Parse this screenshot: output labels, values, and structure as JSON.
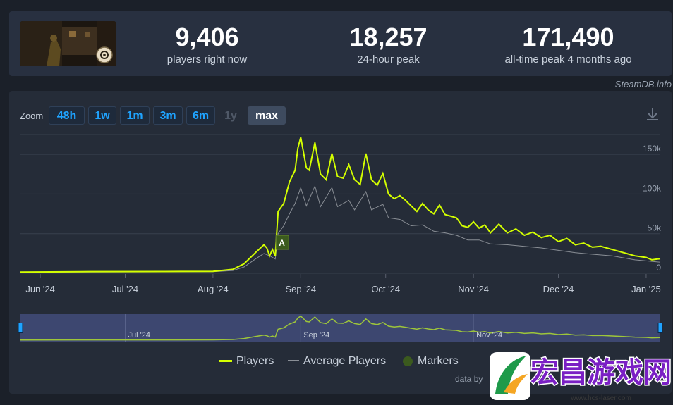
{
  "stats": {
    "current": {
      "value": "9,406",
      "label": "players right now"
    },
    "peak24": {
      "value": "18,257",
      "label": "24-hour peak"
    },
    "alltime": {
      "value": "171,490",
      "label": "all-time peak 4 months ago"
    }
  },
  "credit": "SteamDB.info",
  "zoom": {
    "label": "Zoom",
    "buttons": [
      "48h",
      "1w",
      "1m",
      "3m",
      "6m",
      "1y",
      "max"
    ],
    "active": "max",
    "disabled": "1y"
  },
  "colors": {
    "players": "#d4ff00",
    "average": "#8a8f96",
    "marker_fill": "#3b5a1e",
    "accent": "#1fa3ff"
  },
  "legend": {
    "players": "Players",
    "average": "Average Players",
    "markers": "Markers"
  },
  "data_source": "data by",
  "marker": {
    "label": "A",
    "date": "2024-08-24"
  },
  "watermark": {
    "text": "宏昌游戏网",
    "url": "www.hcs-laser.com"
  },
  "chart_data": {
    "type": "line",
    "title": "",
    "x_range": [
      "2024-05-25",
      "2025-01-06"
    ],
    "x_tick_labels": [
      "Jun '24",
      "Jul '24",
      "Aug '24",
      "Sep '24",
      "Oct '24",
      "Nov '24",
      "Dec '24",
      "Jan '25"
    ],
    "x_tick_dates": [
      "2024-06-01",
      "2024-07-01",
      "2024-08-01",
      "2024-09-01",
      "2024-10-01",
      "2024-11-01",
      "2024-12-01",
      "2025-01-01"
    ],
    "ylim": [
      0,
      175000
    ],
    "y_tick_values": [
      0,
      50000,
      100000,
      150000
    ],
    "y_tick_labels": [
      "0",
      "50k",
      "100k",
      "150k"
    ],
    "navigator_labels": [
      "Jul '24",
      "Sep '24",
      "Nov '24"
    ],
    "navigator_dates": [
      "2024-07-01",
      "2024-09-01",
      "2024-11-01"
    ],
    "series": [
      {
        "name": "Players",
        "points": [
          [
            "2024-05-25",
            1500
          ],
          [
            "2024-06-15",
            2000
          ],
          [
            "2024-07-15",
            2200
          ],
          [
            "2024-08-01",
            2500
          ],
          [
            "2024-08-08",
            5000
          ],
          [
            "2024-08-12",
            12000
          ],
          [
            "2024-08-16",
            26000
          ],
          [
            "2024-08-19",
            36000
          ],
          [
            "2024-08-20",
            32000
          ],
          [
            "2024-08-21",
            22000
          ],
          [
            "2024-08-22",
            30000
          ],
          [
            "2024-08-23",
            22000
          ],
          [
            "2024-08-24",
            78000
          ],
          [
            "2024-08-26",
            88000
          ],
          [
            "2024-08-28",
            115000
          ],
          [
            "2024-08-30",
            130000
          ],
          [
            "2024-08-31",
            158000
          ],
          [
            "2024-09-01",
            171490
          ],
          [
            "2024-09-03",
            133000
          ],
          [
            "2024-09-04",
            130000
          ],
          [
            "2024-09-06",
            165000
          ],
          [
            "2024-09-08",
            125000
          ],
          [
            "2024-09-10",
            118000
          ],
          [
            "2024-09-12",
            151000
          ],
          [
            "2024-09-14",
            122000
          ],
          [
            "2024-09-16",
            120000
          ],
          [
            "2024-09-18",
            137000
          ],
          [
            "2024-09-20",
            118000
          ],
          [
            "2024-09-22",
            112000
          ],
          [
            "2024-09-24",
            151000
          ],
          [
            "2024-09-26",
            118000
          ],
          [
            "2024-09-28",
            111000
          ],
          [
            "2024-09-30",
            126000
          ],
          [
            "2024-10-02",
            100000
          ],
          [
            "2024-10-04",
            94000
          ],
          [
            "2024-10-06",
            98000
          ],
          [
            "2024-10-08",
            92000
          ],
          [
            "2024-10-10",
            85000
          ],
          [
            "2024-10-12",
            78000
          ],
          [
            "2024-10-14",
            88000
          ],
          [
            "2024-10-16",
            80000
          ],
          [
            "2024-10-18",
            75000
          ],
          [
            "2024-10-20",
            86000
          ],
          [
            "2024-10-22",
            74000
          ],
          [
            "2024-10-24",
            72000
          ],
          [
            "2024-10-26",
            70000
          ],
          [
            "2024-10-28",
            60000
          ],
          [
            "2024-10-30",
            58000
          ],
          [
            "2024-11-01",
            65000
          ],
          [
            "2024-11-03",
            57000
          ],
          [
            "2024-11-05",
            61000
          ],
          [
            "2024-11-07",
            51000
          ],
          [
            "2024-11-10",
            62000
          ],
          [
            "2024-11-13",
            51000
          ],
          [
            "2024-11-16",
            56000
          ],
          [
            "2024-11-19",
            48000
          ],
          [
            "2024-11-22",
            52000
          ],
          [
            "2024-11-25",
            45000
          ],
          [
            "2024-11-28",
            48000
          ],
          [
            "2024-12-01",
            40000
          ],
          [
            "2024-12-04",
            44000
          ],
          [
            "2024-12-07",
            36000
          ],
          [
            "2024-12-10",
            38000
          ],
          [
            "2024-12-13",
            33000
          ],
          [
            "2024-12-16",
            34000
          ],
          [
            "2024-12-20",
            30000
          ],
          [
            "2024-12-24",
            26000
          ],
          [
            "2024-12-28",
            22000
          ],
          [
            "2025-01-01",
            20000
          ],
          [
            "2025-01-03",
            17000
          ],
          [
            "2025-01-05",
            18000
          ],
          [
            "2025-01-06",
            18257
          ]
        ]
      },
      {
        "name": "Average Players",
        "points": [
          [
            "2024-05-25",
            1200
          ],
          [
            "2024-06-15",
            1500
          ],
          [
            "2024-07-15",
            1800
          ],
          [
            "2024-08-01",
            2000
          ],
          [
            "2024-08-08",
            3500
          ],
          [
            "2024-08-12",
            8000
          ],
          [
            "2024-08-16",
            18000
          ],
          [
            "2024-08-19",
            25000
          ],
          [
            "2024-08-21",
            22000
          ],
          [
            "2024-08-23",
            18000
          ],
          [
            "2024-08-24",
            50000
          ],
          [
            "2024-08-26",
            60000
          ],
          [
            "2024-08-28",
            75000
          ],
          [
            "2024-08-30",
            88000
          ],
          [
            "2024-09-01",
            108000
          ],
          [
            "2024-09-03",
            85000
          ],
          [
            "2024-09-06",
            110000
          ],
          [
            "2024-09-08",
            84000
          ],
          [
            "2024-09-12",
            108000
          ],
          [
            "2024-09-14",
            84000
          ],
          [
            "2024-09-18",
            92000
          ],
          [
            "2024-09-20",
            80000
          ],
          [
            "2024-09-24",
            103000
          ],
          [
            "2024-09-26",
            80000
          ],
          [
            "2024-09-30",
            87000
          ],
          [
            "2024-10-02",
            70000
          ],
          [
            "2024-10-06",
            68000
          ],
          [
            "2024-10-10",
            60000
          ],
          [
            "2024-10-14",
            61000
          ],
          [
            "2024-10-18",
            53000
          ],
          [
            "2024-10-22",
            51000
          ],
          [
            "2024-10-26",
            48000
          ],
          [
            "2024-10-30",
            42000
          ],
          [
            "2024-11-03",
            42000
          ],
          [
            "2024-11-07",
            37000
          ],
          [
            "2024-11-13",
            36000
          ],
          [
            "2024-11-19",
            34000
          ],
          [
            "2024-11-25",
            32000
          ],
          [
            "2024-12-01",
            29000
          ],
          [
            "2024-12-07",
            26000
          ],
          [
            "2024-12-13",
            24000
          ],
          [
            "2024-12-20",
            22000
          ],
          [
            "2024-12-28",
            17000
          ],
          [
            "2025-01-06",
            14000
          ]
        ]
      }
    ]
  }
}
